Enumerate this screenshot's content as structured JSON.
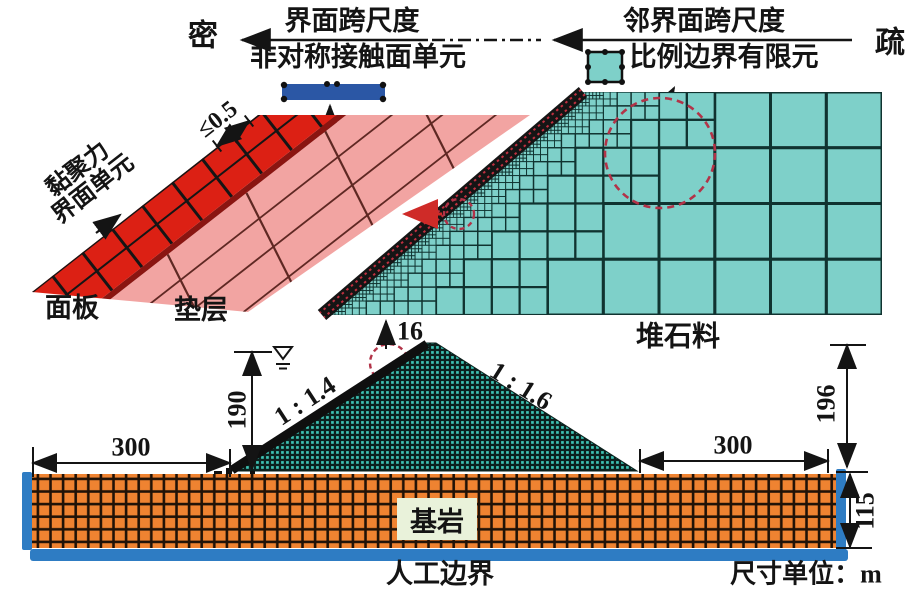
{
  "figure": {
    "top_annotations": {
      "dense_label": "密",
      "sparse_label": "疏",
      "left_arrow_title": "界面跨尺度",
      "left_arrow_subtitle": "非对称接触面单元",
      "right_arrow_title": "邻界面跨尺度",
      "right_arrow_subtitle": "比例边界有限元"
    },
    "interface_detail": {
      "cohesive_label_line1": "黏聚力",
      "cohesive_label_line2": "界面单元",
      "element_size_label": "≤0.5",
      "face_slab_label": "面板",
      "cushion_label": "垫层"
    },
    "rockfill_label": "堆石料",
    "dam_section": {
      "upstream_reservoir_width": "300",
      "water_depth": "190",
      "crest_width": "16",
      "upstream_slope": "1 : 1.4",
      "downstream_slope": "1 : 1.6",
      "downstream_width": "300",
      "dam_height": "196",
      "foundation_depth": "115",
      "bedrock_label": "基岩",
      "artificial_boundary_label": "人工边界",
      "unit_label": "尺寸单位：m"
    }
  },
  "colors": {
    "face_slab_red": "#dc2014",
    "interface_dark_red": "#8a1511",
    "cushion_pink": "#f2a4a2",
    "mesh_line_pink": "#5f2823",
    "rockfill_teal": "#7ed0c9",
    "mesh_line_teal": "#103330",
    "dam_dark": "#0c211e",
    "dam_dot_teal": "#3ec3b4",
    "bedrock_orange": "#ef8331",
    "bedrock_gap": "#201207",
    "boundary_blue": "#2e7cc3",
    "contact_element_blue": "#2b57a5",
    "annotation_red": "#c03040",
    "dashed_arrow_red": "#cf2b28"
  }
}
